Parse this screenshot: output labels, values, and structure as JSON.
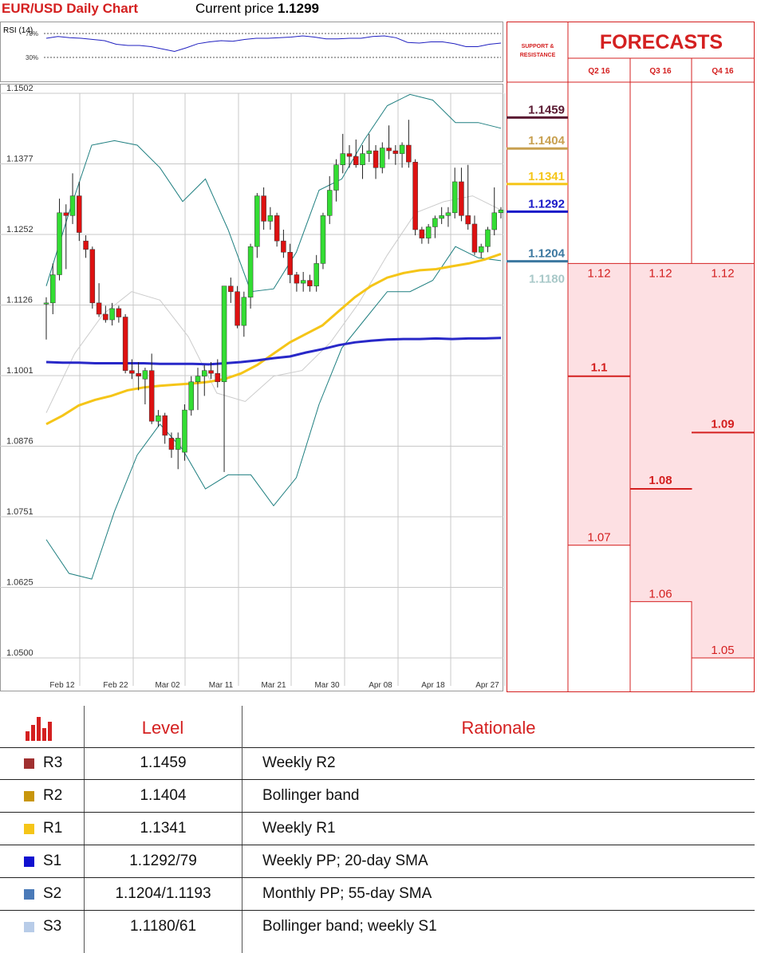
{
  "header": {
    "title": "EUR/USD Daily Chart",
    "price_label": "Current price",
    "price_value": "1.1299"
  },
  "chart_data": [
    {
      "type": "candlestick",
      "title": "EUR/USD Daily Chart",
      "yticks": [
        "1.1502",
        "1.1377",
        "1.1252",
        "1.1126",
        "1.1001",
        "1.0876",
        "1.0751",
        "1.0625",
        "1.0500"
      ],
      "ylim": [
        1.05,
        1.1502
      ],
      "xticks": [
        "Feb 12",
        "Feb 22",
        "Mar 02",
        "Mar 11",
        "Mar 21",
        "Mar 30",
        "Apr 08",
        "Apr 18",
        "Apr 27"
      ],
      "grid": true,
      "candles": [
        [
          1.113,
          1.114,
          1.1065,
          1.113
        ],
        [
          1.113,
          1.12,
          1.111,
          1.118
        ],
        [
          1.118,
          1.1315,
          1.117,
          1.129
        ],
        [
          1.129,
          1.1305,
          1.119,
          1.1285
        ],
        [
          1.1285,
          1.136,
          1.127,
          1.132
        ],
        [
          1.132,
          1.1345,
          1.124,
          1.1255
        ],
        [
          1.124,
          1.125,
          1.121,
          1.1225
        ],
        [
          1.1225,
          1.123,
          1.112,
          1.113
        ],
        [
          1.113,
          1.1165,
          1.1105,
          1.111
        ],
        [
          1.111,
          1.1125,
          1.1095,
          1.11
        ],
        [
          1.11,
          1.113,
          1.109,
          1.112
        ],
        [
          1.112,
          1.1125,
          1.1095,
          1.1105
        ],
        [
          1.1105,
          1.111,
          1.1005,
          1.101
        ],
        [
          1.101,
          1.103,
          1.0995,
          1.1005
        ],
        [
          1.1005,
          1.1025,
          1.0975,
          1.1
        ],
        [
          1.0995,
          1.1015,
          1.095,
          1.101
        ],
        [
          1.101,
          1.104,
          1.0915,
          1.092
        ],
        [
          1.092,
          1.094,
          1.091,
          1.093
        ],
        [
          1.093,
          1.0935,
          1.088,
          1.0895
        ],
        [
          1.089,
          1.09,
          1.0855,
          1.087
        ],
        [
          1.087,
          1.09,
          1.0835,
          1.089
        ],
        [
          1.0865,
          1.095,
          1.085,
          1.094
        ],
        [
          1.094,
          1.1,
          1.093,
          1.099
        ],
        [
          1.099,
          1.1015,
          1.094,
          1.1
        ],
        [
          1.1,
          1.102,
          1.0965,
          1.101
        ],
        [
          1.101,
          1.1025,
          1.0995,
          1.1005
        ],
        [
          1.1005,
          1.103,
          1.098,
          1.099
        ],
        [
          1.099,
          1.116,
          1.083,
          1.116
        ],
        [
          1.116,
          1.1175,
          1.113,
          1.115
        ],
        [
          1.115,
          1.116,
          1.1085,
          1.109
        ],
        [
          1.109,
          1.115,
          1.107,
          1.114
        ],
        [
          1.114,
          1.1235,
          1.112,
          1.123
        ],
        [
          1.123,
          1.1325,
          1.121,
          1.132
        ],
        [
          1.132,
          1.1335,
          1.126,
          1.1275
        ],
        [
          1.1275,
          1.13,
          1.126,
          1.1285
        ],
        [
          1.1285,
          1.129,
          1.123,
          1.124
        ],
        [
          1.124,
          1.126,
          1.121,
          1.122
        ],
        [
          1.122,
          1.1235,
          1.1165,
          1.118
        ],
        [
          1.118,
          1.1185,
          1.115,
          1.1165
        ],
        [
          1.1165,
          1.1185,
          1.115,
          1.117
        ],
        [
          1.117,
          1.118,
          1.115,
          1.116
        ],
        [
          1.116,
          1.1215,
          1.115,
          1.12
        ],
        [
          1.12,
          1.129,
          1.119,
          1.1285
        ],
        [
          1.1285,
          1.1355,
          1.127,
          1.133
        ],
        [
          1.133,
          1.1385,
          1.131,
          1.1375
        ],
        [
          1.1375,
          1.143,
          1.136,
          1.1395
        ],
        [
          1.1395,
          1.141,
          1.137,
          1.139
        ],
        [
          1.139,
          1.142,
          1.137,
          1.1375
        ],
        [
          1.1375,
          1.141,
          1.135,
          1.1395
        ],
        [
          1.1395,
          1.143,
          1.138,
          1.14
        ],
        [
          1.14,
          1.141,
          1.135,
          1.137
        ],
        [
          1.137,
          1.1415,
          1.136,
          1.1405
        ],
        [
          1.1405,
          1.1445,
          1.1385,
          1.14
        ],
        [
          1.14,
          1.141,
          1.1375,
          1.1395
        ],
        [
          1.1395,
          1.1415,
          1.137,
          1.141
        ],
        [
          1.141,
          1.1455,
          1.137,
          1.138
        ],
        [
          1.138,
          1.1385,
          1.125,
          1.126
        ],
        [
          1.126,
          1.1265,
          1.1235,
          1.1245
        ],
        [
          1.1245,
          1.127,
          1.1235,
          1.1265
        ],
        [
          1.1265,
          1.1285,
          1.1245,
          1.128
        ],
        [
          1.128,
          1.13,
          1.127,
          1.1285
        ],
        [
          1.1285,
          1.13,
          1.1265,
          1.129
        ],
        [
          1.129,
          1.137,
          1.128,
          1.1345
        ],
        [
          1.1345,
          1.137,
          1.1275,
          1.1285
        ],
        [
          1.1285,
          1.1375,
          1.126,
          1.127
        ],
        [
          1.127,
          1.1285,
          1.1215,
          1.122
        ],
        [
          1.122,
          1.1235,
          1.121,
          1.123
        ],
        [
          1.123,
          1.1265,
          1.122,
          1.126
        ],
        [
          1.126,
          1.1335,
          1.125,
          1.129
        ],
        [
          1.129,
          1.13,
          1.128,
          1.1295
        ]
      ],
      "series": [
        {
          "color": "#2828c8",
          "values": [
            1.1025,
            1.1024,
            1.1024,
            1.1023,
            1.1023,
            1.1023,
            1.1023,
            1.1022,
            1.1022,
            1.1022,
            1.1021,
            1.1023,
            1.1025,
            1.1028,
            1.1032,
            1.1035,
            1.1042,
            1.1048,
            1.1055,
            1.106,
            1.1063,
            1.1065,
            1.1066,
            1.1066,
            1.1067,
            1.1066,
            1.1067,
            1.1067,
            1.1068
          ]
        },
        {
          "color": "#f5c518",
          "values": [
            1.0915,
            1.093,
            1.0948,
            1.0958,
            1.0965,
            1.0975,
            1.098,
            1.0983,
            1.0985,
            1.0987,
            1.099,
            1.0995,
            1.1005,
            1.102,
            1.104,
            1.106,
            1.1075,
            1.109,
            1.1115,
            1.114,
            1.116,
            1.1175,
            1.1183,
            1.1188,
            1.119,
            1.1195,
            1.12,
            1.1207,
            1.1217
          ]
        },
        {
          "color": "#1f7f80",
          "values": [
            1.116,
            1.129,
            1.141,
            1.1418,
            1.141,
            1.137,
            1.131,
            1.135,
            1.126,
            1.115,
            1.1155,
            1.122,
            1.133,
            1.135,
            1.142,
            1.148,
            1.15,
            1.149,
            1.145,
            1.145,
            1.144
          ]
        },
        {
          "color": "#1f7f80",
          "values": [
            1.071,
            1.065,
            1.064,
            1.076,
            1.086,
            1.0915,
            1.087,
            1.08,
            1.0825,
            1.0825,
            1.077,
            1.082,
            1.095,
            1.105,
            1.11,
            1.115,
            1.115,
            1.117,
            1.123,
            1.121,
            1.1205
          ]
        },
        {
          "color": "#cccccc",
          "values": [
            1.0935,
            1.104,
            1.111,
            1.115,
            1.1135,
            1.107,
            1.097,
            1.0955,
            1.1,
            1.101,
            1.106,
            1.113,
            1.1215,
            1.129,
            1.131,
            1.132,
            1.1295
          ]
        }
      ]
    },
    {
      "type": "line",
      "title": "RSI (14)",
      "yticks": [
        "70%",
        "30%"
      ],
      "ylim": [
        0,
        100
      ],
      "values": [
        72,
        75,
        73,
        72,
        70,
        68,
        62,
        60,
        60,
        58,
        54,
        50,
        56,
        63,
        66,
        68,
        67,
        70,
        72,
        72,
        73,
        74,
        76,
        74,
        71,
        71,
        72,
        72,
        75,
        76,
        73,
        65,
        64,
        66,
        66,
        63,
        58,
        58,
        62,
        64
      ]
    }
  ],
  "sr_panel": {
    "title_line1": "SUPPORT &",
    "title_line2": "RESISTANCE",
    "levels": [
      {
        "value": "1.1459",
        "color": "#5a1a32"
      },
      {
        "value": "1.1404",
        "color": "#c8a050"
      },
      {
        "value": "1.1341",
        "color": "#f5c518"
      },
      {
        "value": "1.1292",
        "color": "#1a1ac8"
      },
      {
        "value": "1.1204",
        "color": "#3c78a0"
      },
      {
        "value": "1.1180",
        "color": "#a8c8c8"
      }
    ]
  },
  "forecasts": {
    "title": "FORECASTS",
    "quarters": [
      {
        "label": "Q2 16",
        "high": "1.12",
        "mid": "1.1",
        "low": "1.07",
        "mid_value": 1.1,
        "low_value": 1.07
      },
      {
        "label": "Q3 16",
        "high": "1.12",
        "mid": "1.08",
        "low": "1.06",
        "mid_value": 1.08,
        "low_value": 1.06
      },
      {
        "label": "Q4 16",
        "high": "1.12",
        "mid": "1.09",
        "low": "1.05",
        "mid_value": 1.09,
        "low_value": 1.05
      }
    ]
  },
  "table": {
    "level_header": "Level",
    "rationale_header": "Rationale",
    "rows": [
      {
        "id": "R3",
        "level": "1.1459",
        "rationale": "Weekly R2",
        "color": "#a03030"
      },
      {
        "id": "R2",
        "level": "1.1404",
        "rationale": "Bollinger band",
        "color": "#c8960c"
      },
      {
        "id": "R1",
        "level": "1.1341",
        "rationale": "Weekly R1",
        "color": "#f5c518"
      },
      {
        "id": "S1",
        "level": "1.1292/79",
        "rationale": "Weekly PP; 20-day SMA",
        "color": "#1010d0"
      },
      {
        "id": "S2",
        "level": "1.1204/1.1193",
        "rationale": "Monthly PP; 55-day SMA",
        "color": "#4a7ab8"
      },
      {
        "id": "S3",
        "level": "1.1180/61",
        "rationale": "Bollinger band; weekly S1",
        "color": "#b8cce8"
      }
    ]
  }
}
